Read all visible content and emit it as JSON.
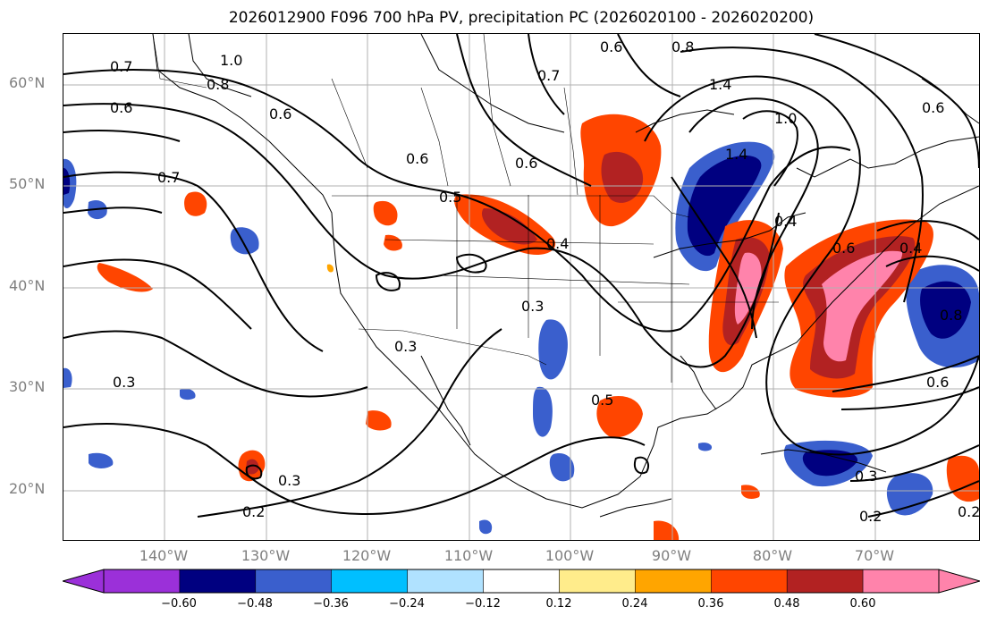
{
  "title": "2026012900 F096 700 hPa PV, precipitation PC (2026020100 - 2026020200)",
  "lat_labels": [
    "60°N",
    "50°N",
    "40°N",
    "30°N",
    "20°N"
  ],
  "lon_labels": [
    "140°W",
    "130°W",
    "120°W",
    "110°W",
    "100°W",
    "90°W",
    "80°W",
    "70°W"
  ],
  "colorbar": {
    "colors": [
      "#9b30d9",
      "#000080",
      "#3a5fcd",
      "#00bfff",
      "#b0e2ff",
      "#ffffff",
      "#ffec8b",
      "#ffa500",
      "#ff4500",
      "#b22222",
      "#ff83ab"
    ],
    "tick_labels": [
      "−0.60",
      "−0.48",
      "−0.36",
      "−0.24",
      "−0.12",
      "0.12",
      "0.24",
      "0.36",
      "0.48",
      "0.60"
    ]
  },
  "contour_labels": [
    "0.7",
    "0.8",
    "1.0",
    "0.6",
    "0.6",
    "0.7",
    "0.6",
    "0.5",
    "0.6",
    "0.4",
    "0.3",
    "0.3",
    "0.3",
    "0.2",
    "0.3",
    "0.5",
    "0.6",
    "0.8",
    "1.4",
    "1.0",
    "0.7",
    "0.6",
    "1.4",
    "0.8",
    "0.6",
    "0.3",
    "0.2",
    "0.2",
    "0.4",
    "0.4",
    "0.6"
  ]
}
